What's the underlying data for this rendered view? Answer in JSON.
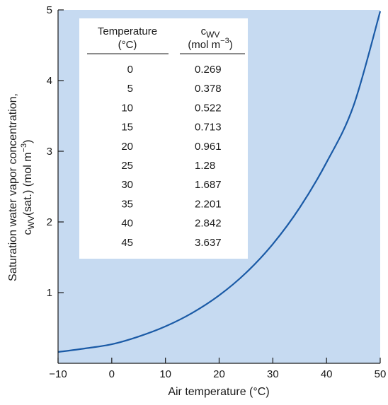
{
  "chart_data": {
    "type": "line",
    "xlabel": "Air temperature (°C)",
    "ylabel_line1": "Saturation water vapor concentration,",
    "ylabel_line2_main": "c",
    "ylabel_line2_sub": "WV",
    "ylabel_line2_rest": "(sat.) (mol m",
    "ylabel_line2_sup": "−3",
    "ylabel_line2_end": ")",
    "xlim": [
      -10,
      50
    ],
    "ylim": [
      0,
      5
    ],
    "x_ticks": [
      -10,
      0,
      10,
      20,
      30,
      40,
      50
    ],
    "x_tick_labels": [
      "−10",
      "0",
      "10",
      "20",
      "30",
      "40",
      "50"
    ],
    "y_ticks": [
      1,
      2,
      3,
      4,
      5
    ],
    "y_tick_labels": [
      "1",
      "2",
      "3",
      "4",
      "5"
    ],
    "grid": false,
    "series": [
      {
        "x": [
          -10,
          -5,
          0,
          5,
          10,
          15,
          20,
          25,
          30,
          35,
          40,
          45,
          50
        ],
        "values": [
          0.16,
          0.21,
          0.269,
          0.378,
          0.522,
          0.713,
          0.961,
          1.28,
          1.687,
          2.201,
          2.842,
          3.637,
          4.98
        ]
      }
    ],
    "table": {
      "col1_header_line1": "Temperature",
      "col1_header_line2": "(°C)",
      "col2_header_main": "c",
      "col2_header_sub": "WV",
      "col2_header_line2_pre": "(mol m",
      "col2_header_line2_sup": "−3",
      "col2_header_line2_post": ")",
      "rows": [
        [
          "0",
          "0.269"
        ],
        [
          "5",
          "0.378"
        ],
        [
          "10",
          "0.522"
        ],
        [
          "15",
          "0.713"
        ],
        [
          "20",
          "0.961"
        ],
        [
          "25",
          "1.28"
        ],
        [
          "30",
          "1.687"
        ],
        [
          "35",
          "2.201"
        ],
        [
          "40",
          "2.842"
        ],
        [
          "45",
          "3.637"
        ]
      ]
    },
    "colors": {
      "plot_background": "#c6daf1",
      "curve": "#1a5aa6",
      "axis": "#1a1a1a",
      "table_background": "#ffffff"
    }
  }
}
